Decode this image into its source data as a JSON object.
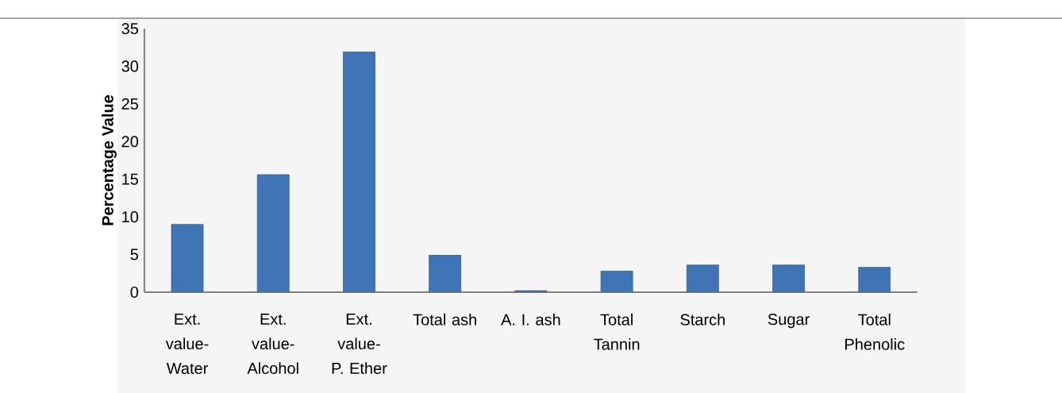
{
  "chart_data": {
    "type": "bar",
    "ylabel": "Percentage Value",
    "categories": [
      "Ext. value-Water",
      "Ext. value-Alcohol",
      "Ext. value- P. Ether",
      "Total ash",
      "A. I. ash",
      "Total Tannin",
      "Starch",
      "Sugar",
      "Total Phenolic"
    ],
    "values": [
      9.0,
      15.6,
      31.9,
      4.9,
      0.2,
      2.8,
      3.6,
      3.6,
      3.3
    ],
    "color": "#3f75b5",
    "ylim": [
      0,
      35
    ],
    "yticks": [
      0,
      5,
      10,
      15,
      20,
      25,
      30,
      35
    ]
  }
}
